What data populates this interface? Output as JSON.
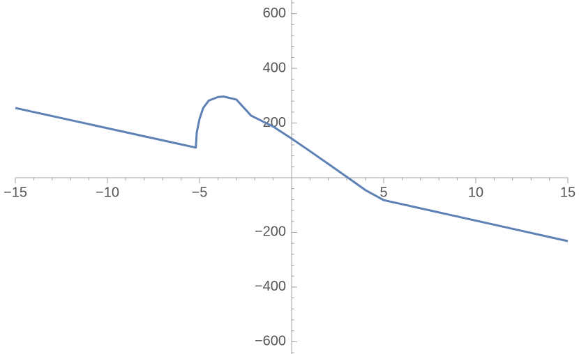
{
  "chart_data": {
    "type": "line",
    "x": [
      -15,
      -10,
      -5.2,
      -5.15,
      -5,
      -4.8,
      -4.5,
      -4,
      -3.7,
      -3,
      -2.2,
      -1,
      0,
      1,
      2,
      3,
      4,
      5,
      10,
      15
    ],
    "series": [
      {
        "color": "#5e81b5",
        "values": [
          255,
          181,
          110,
          165,
          215,
          255,
          282,
          295,
          297,
          286,
          227,
          187,
          143,
          97,
          50,
          3,
          -45,
          -82,
          -157,
          -232
        ]
      }
    ],
    "xlim": [
      -15,
      15
    ],
    "ylim": [
      -650,
      650
    ],
    "xticks": [
      {
        "value": -15,
        "label": "−15"
      },
      {
        "value": -10,
        "label": "−10"
      },
      {
        "value": -5,
        "label": "−5"
      },
      5,
      10,
      15
    ],
    "yticks": [
      {
        "value": -600,
        "label": "−600"
      },
      {
        "value": -400,
        "label": "−400"
      },
      {
        "value": -200,
        "label": "−200"
      },
      200,
      400,
      600
    ]
  }
}
